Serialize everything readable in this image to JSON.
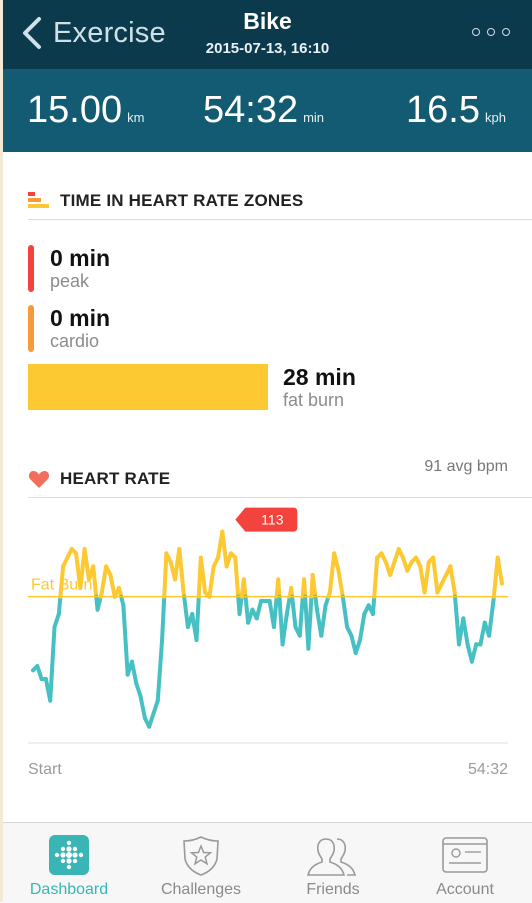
{
  "header": {
    "back_label": "Exercise",
    "title": "Bike",
    "subtitle": "2015-07-13, 16:10"
  },
  "stats": [
    {
      "value": "15.00",
      "unit": "km"
    },
    {
      "value": "54:32",
      "unit": "min"
    },
    {
      "value": "16.5",
      "unit": "kph"
    }
  ],
  "zones_section": {
    "title": "TIME IN HEART RATE ZONES",
    "zones": [
      {
        "value": "0 min",
        "label": "peak",
        "color": "#f4433c"
      },
      {
        "value": "0 min",
        "label": "cardio",
        "color": "#f79a3a"
      },
      {
        "value": "28 min",
        "label": "fat burn",
        "color": "#fcc932",
        "fraction": 1.0
      }
    ]
  },
  "heart_section": {
    "title": "HEART RATE",
    "avg": "91 avg bpm",
    "threshold_label": "Fat Burn",
    "peak_badge": "113",
    "start_label": "Start",
    "end_label": "54:32"
  },
  "colors": {
    "header_bg": "#0c3a4d",
    "stats_bg": "#135b72",
    "teal_line": "#47c0c3",
    "yellow_line": "#fcc932",
    "badge": "#f4433c",
    "heart": "#f26d5b"
  },
  "chart_data": {
    "type": "line",
    "x": [
      0.0,
      0.5,
      1.0,
      1.5,
      2.0,
      2.5,
      3.0,
      3.5,
      4.0,
      4.5,
      5.0,
      5.5,
      6.0,
      6.5,
      7.0,
      7.5,
      8.0,
      8.5,
      9.0,
      9.5,
      10.0,
      10.5,
      11.0,
      11.5,
      12.0,
      12.5,
      13.0,
      13.5,
      14.0,
      14.5,
      15.0,
      15.5,
      16.0,
      16.5,
      17.0,
      17.5,
      18.0,
      18.5,
      19.0,
      19.5,
      20.0,
      20.5,
      21.0,
      21.5,
      22.0,
      22.5,
      23.0,
      23.5,
      24.0,
      24.5,
      25.0,
      25.5,
      26.0,
      26.5,
      27.0,
      27.5,
      28.0,
      28.5,
      29.0,
      29.5,
      30.0,
      30.5,
      31.0,
      31.5,
      32.0,
      32.5,
      33.0,
      33.5,
      34.0,
      34.5,
      35.0,
      35.5,
      36.0,
      36.5,
      37.0,
      37.5,
      38.0,
      38.5,
      39.0,
      39.5,
      40.0,
      40.5,
      41.0,
      41.5,
      42.0,
      42.5,
      43.0,
      43.5,
      44.0,
      44.5,
      45.0,
      45.5,
      46.0,
      46.5,
      47.0,
      47.5,
      48.0,
      48.5,
      49.0,
      49.5,
      50.0,
      50.5,
      51.0,
      51.5,
      52.0,
      52.5,
      53.0,
      53.5,
      54.0,
      54.5
    ],
    "series": [
      {
        "values": [
          80,
          81,
          78,
          78,
          73,
          90,
          93,
          104,
          106,
          108,
          107,
          99,
          108,
          101,
          104,
          94,
          98,
          104,
          102,
          97,
          99,
          95,
          79,
          82,
          77,
          74,
          69,
          67,
          70,
          73,
          87,
          107,
          105,
          101,
          108,
          98,
          90,
          93,
          87,
          106,
          98,
          97,
          104,
          106,
          112,
          104,
          107,
          106,
          93,
          101,
          91,
          94,
          92,
          96,
          96,
          96,
          90,
          101,
          86,
          93,
          99,
          90,
          88,
          101,
          85,
          102,
          94,
          88,
          95,
          98,
          107,
          103,
          97,
          90,
          88,
          84,
          87,
          93,
          95,
          93,
          106,
          107,
          105,
          102,
          105,
          108,
          106,
          103,
          105,
          106,
          104,
          98,
          105,
          106,
          98,
          100,
          102,
          104,
          98,
          86,
          92,
          86,
          82,
          86,
          86,
          91,
          88,
          96,
          106,
          100
        ]
      }
    ],
    "threshold": 97,
    "peak_value": 113,
    "y_range": [
      60,
      120
    ]
  },
  "tabs": [
    {
      "label": "Dashboard",
      "icon": "dashboard-icon"
    },
    {
      "label": "Challenges",
      "icon": "challenges-star-icon"
    },
    {
      "label": "Friends",
      "icon": "friends-icon"
    },
    {
      "label": "Account",
      "icon": "account-card-icon"
    }
  ]
}
